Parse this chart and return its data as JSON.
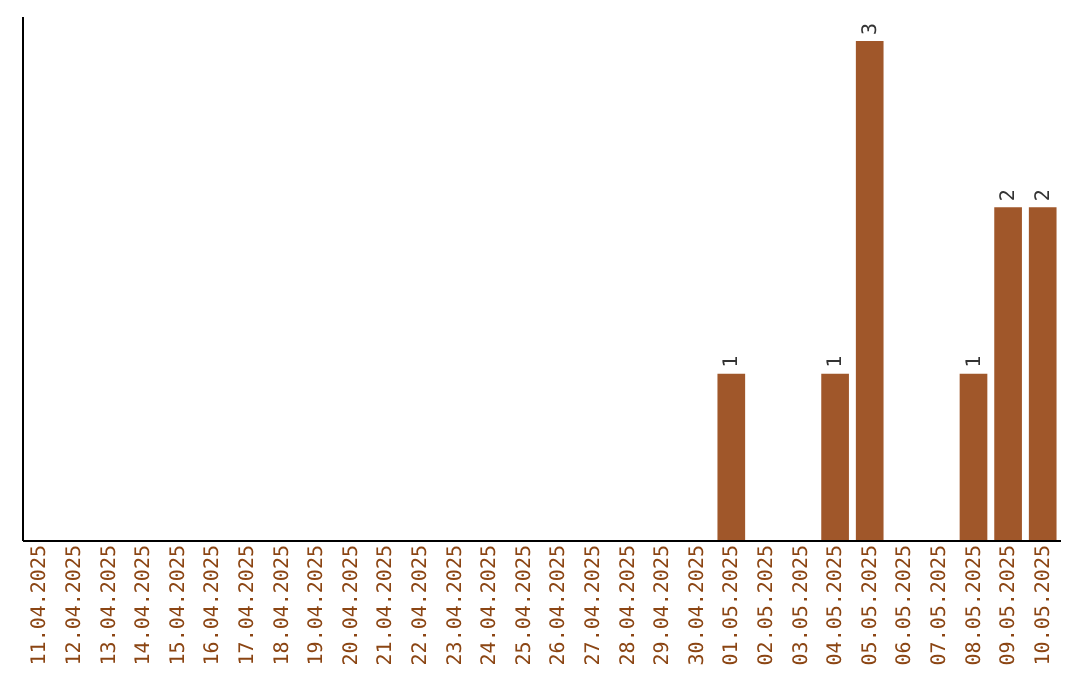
{
  "chart_data": {
    "type": "bar",
    "categories": [
      "11.04.2025",
      "12.04.2025",
      "13.04.2025",
      "14.04.2025",
      "15.04.2025",
      "16.04.2025",
      "17.04.2025",
      "18.04.2025",
      "19.04.2025",
      "20.04.2025",
      "21.04.2025",
      "22.04.2025",
      "23.04.2025",
      "24.04.2025",
      "25.04.2025",
      "26.04.2025",
      "27.04.2025",
      "28.04.2025",
      "29.04.2025",
      "30.04.2025",
      "01.05.2025",
      "02.05.2025",
      "03.05.2025",
      "04.05.2025",
      "05.05.2025",
      "06.05.2025",
      "07.05.2025",
      "08.05.2025",
      "09.05.2025",
      "10.05.2025"
    ],
    "values": [
      null,
      null,
      null,
      null,
      null,
      null,
      null,
      null,
      null,
      null,
      null,
      null,
      null,
      null,
      null,
      null,
      null,
      null,
      null,
      null,
      1,
      null,
      null,
      1,
      3,
      null,
      null,
      1,
      2,
      2
    ],
    "value_labels": [
      null,
      null,
      null,
      null,
      null,
      null,
      null,
      null,
      null,
      null,
      null,
      null,
      null,
      null,
      null,
      null,
      null,
      null,
      null,
      null,
      "1",
      null,
      null,
      "1",
      "3",
      null,
      null,
      "1",
      "2",
      "2"
    ],
    "color": "#a0572a",
    "ylim": [
      0,
      3.15
    ],
    "tick_labels": "x"
  }
}
